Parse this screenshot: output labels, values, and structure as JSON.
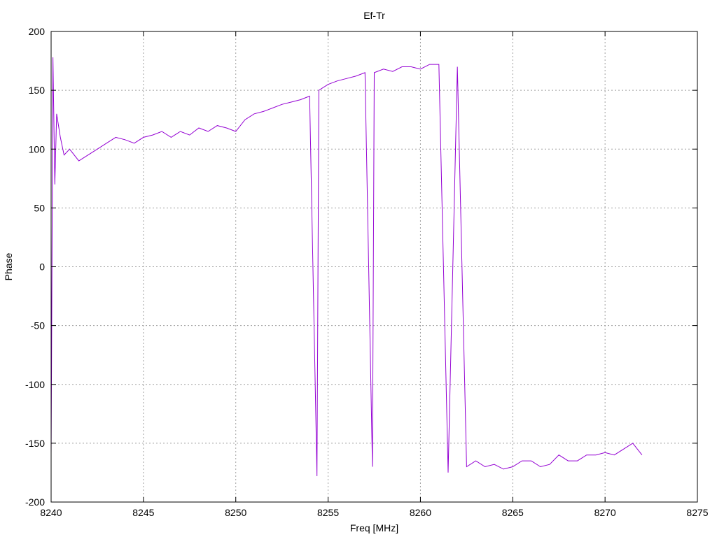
{
  "chart_data": {
    "type": "line",
    "title": "Ef-Tr",
    "xlabel": "Freq [MHz]",
    "ylabel": "Phase",
    "xlim": [
      8240,
      8275
    ],
    "ylim": [
      -200,
      200
    ],
    "xticks": [
      8240,
      8245,
      8250,
      8255,
      8260,
      8265,
      8270,
      8275
    ],
    "yticks": [
      -200,
      -150,
      -100,
      -50,
      0,
      50,
      100,
      150,
      200
    ],
    "grid": true,
    "legend": "none",
    "series": [
      {
        "color": "#9400d3",
        "x": [
          8240.0,
          8240.1,
          8240.2,
          8240.3,
          8240.5,
          8240.7,
          8241.0,
          8241.5,
          8242.0,
          8242.5,
          8243.0,
          8243.5,
          8244.0,
          8244.5,
          8245.0,
          8245.5,
          8246.0,
          8246.5,
          8247.0,
          8247.5,
          8248.0,
          8248.5,
          8249.0,
          8249.5,
          8250.0,
          8250.5,
          8251.0,
          8251.5,
          8252.0,
          8252.5,
          8253.0,
          8253.5,
          8254.0,
          8254.4,
          8254.5,
          8255.0,
          8255.5,
          8256.0,
          8256.5,
          8257.0,
          8257.4,
          8257.5,
          8258.0,
          8258.5,
          8259.0,
          8259.5,
          8260.0,
          8260.5,
          8261.0,
          8261.5,
          8262.0,
          8262.5,
          8263.0,
          8263.5,
          8264.0,
          8264.5,
          8265.0,
          8265.5,
          8266.0,
          8266.5,
          8267.0,
          8267.5,
          8268.0,
          8268.5,
          8269.0,
          8269.5,
          8270.0,
          8270.5,
          8271.0,
          8271.5,
          8272.0
        ],
        "y": [
          -160,
          178,
          70,
          130,
          110,
          95,
          100,
          90,
          95,
          100,
          105,
          110,
          108,
          105,
          110,
          112,
          115,
          110,
          115,
          112,
          118,
          115,
          120,
          118,
          115,
          125,
          130,
          132,
          135,
          138,
          140,
          142,
          145,
          -178,
          150,
          155,
          158,
          160,
          162,
          165,
          -170,
          165,
          168,
          166,
          170,
          170,
          168,
          172,
          172,
          -175,
          170,
          -170,
          -165,
          -170,
          -168,
          -172,
          -170,
          -165,
          -165,
          -170,
          -168,
          -160,
          -165,
          -165,
          -160,
          -160,
          -158,
          -160,
          -155,
          -150,
          -160
        ]
      }
    ]
  }
}
